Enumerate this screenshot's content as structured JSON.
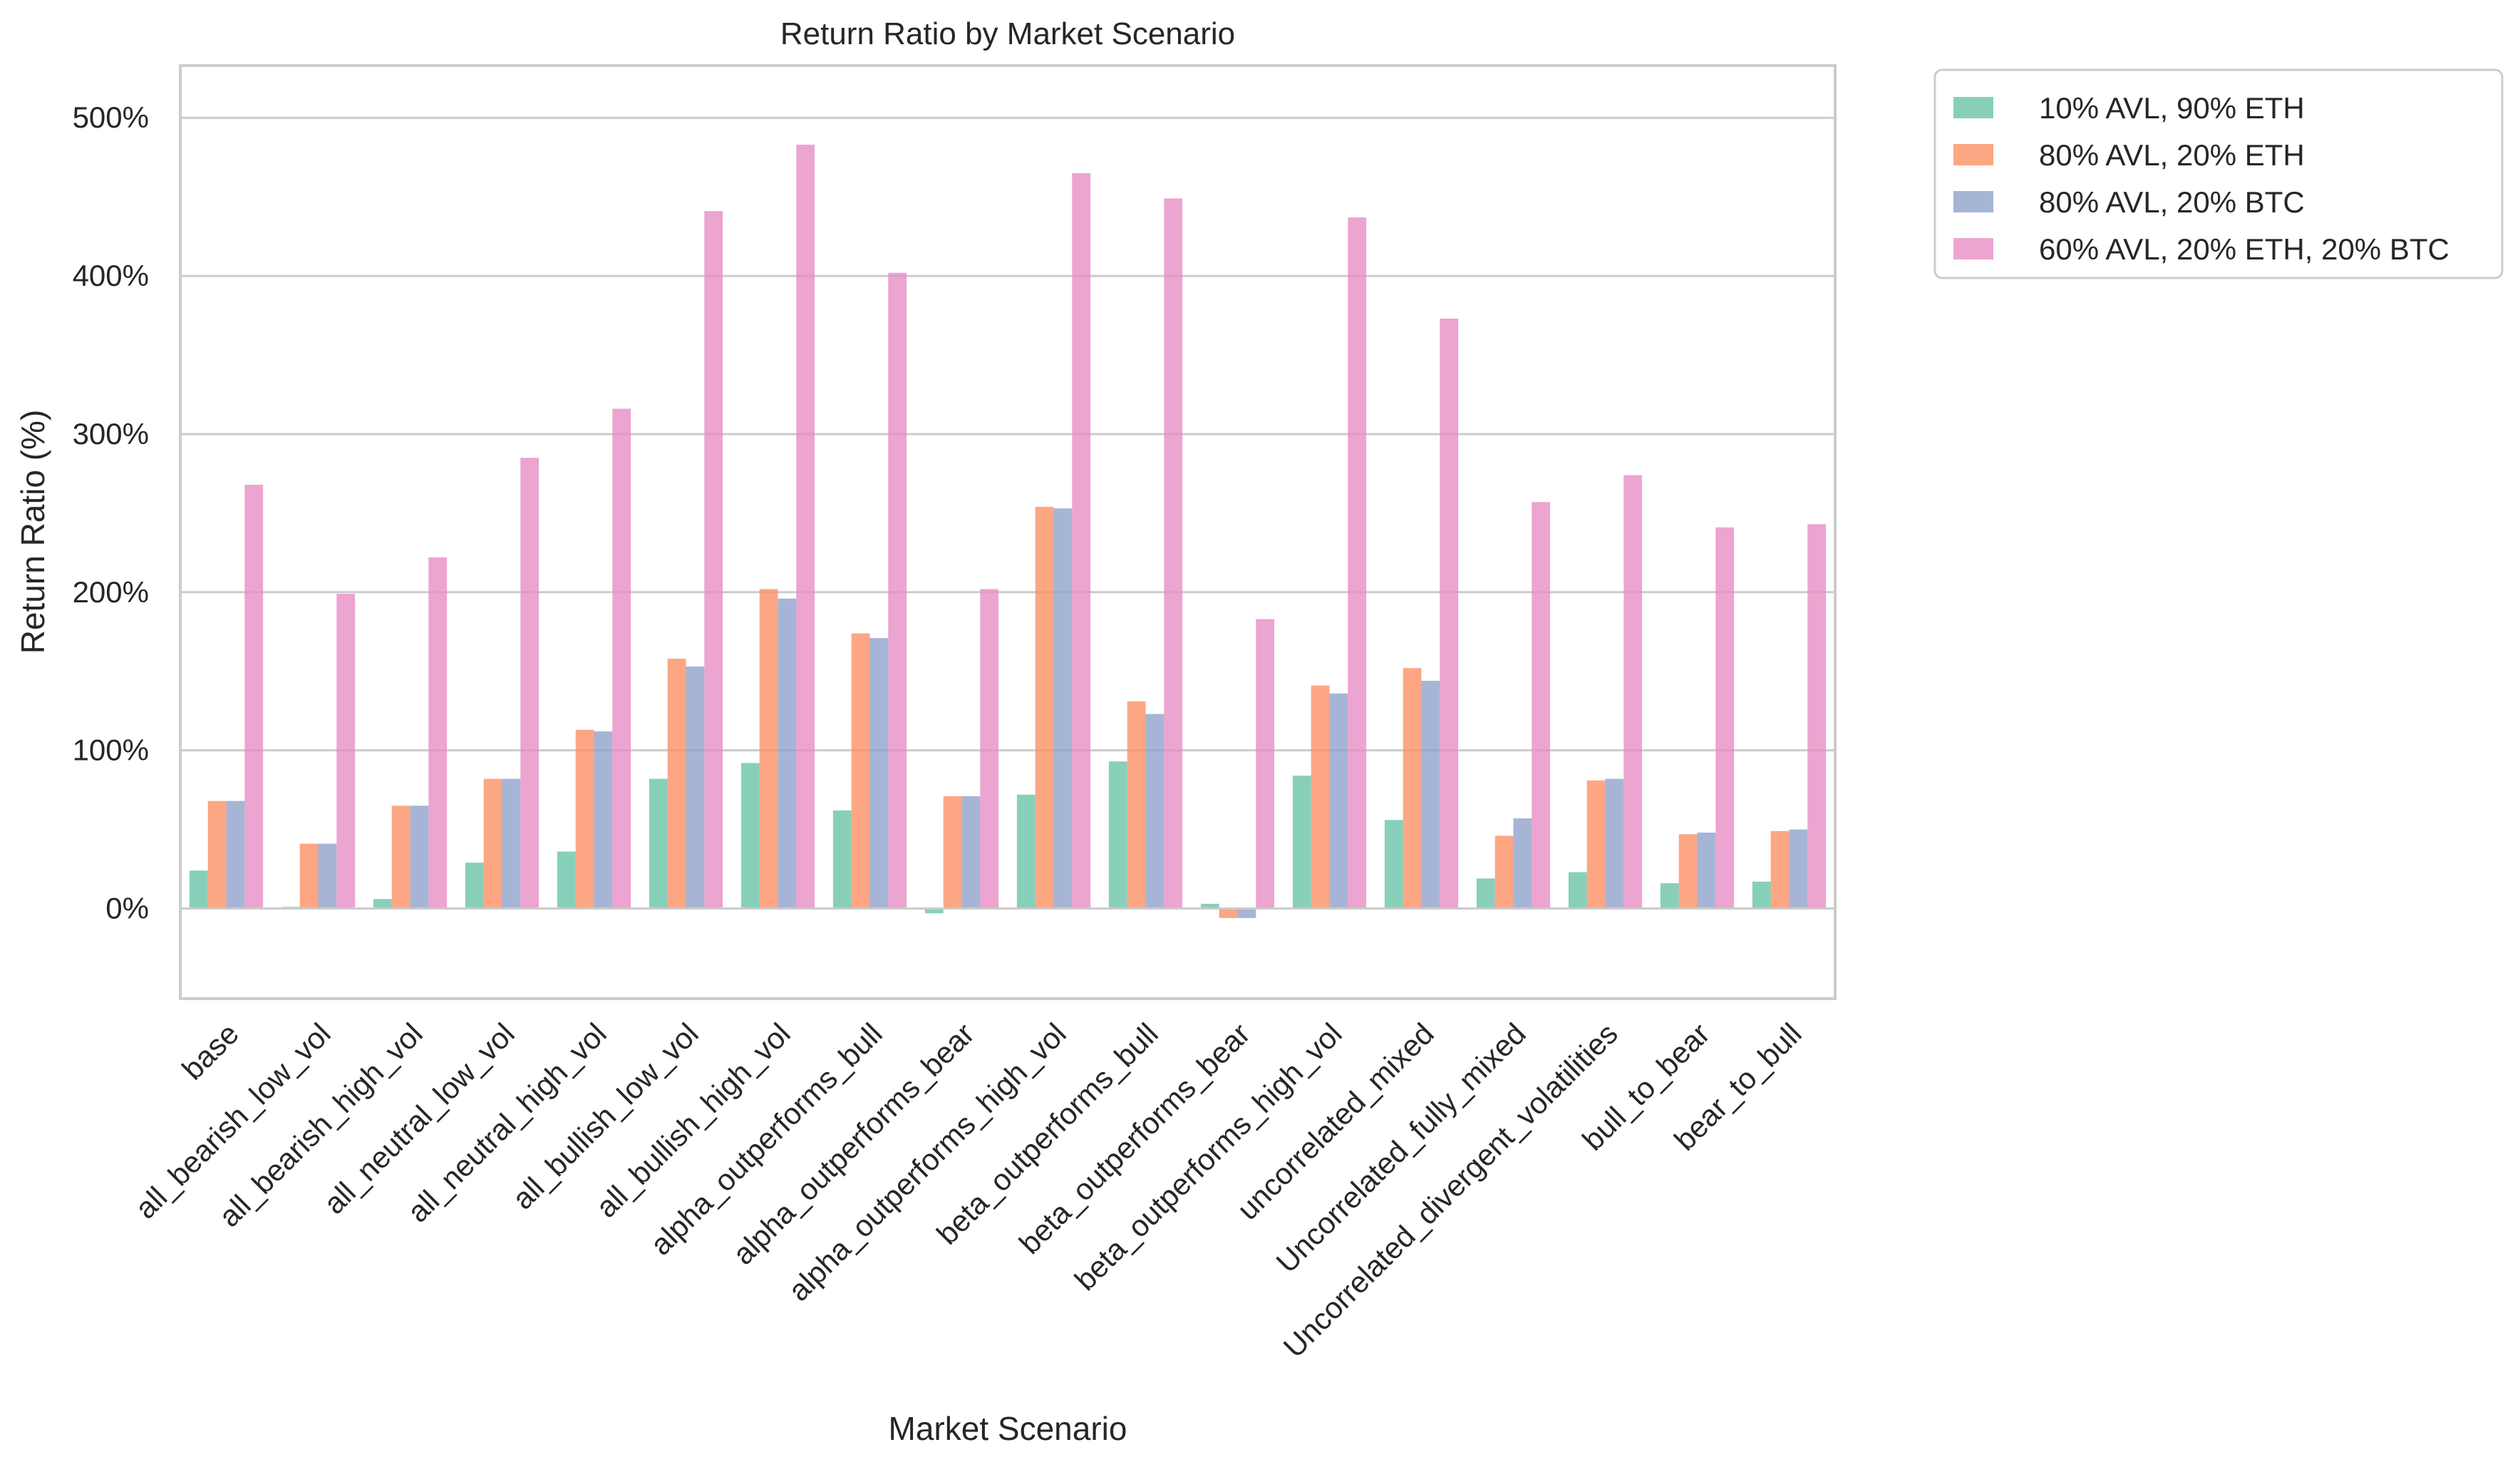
{
  "chart_data": {
    "type": "bar",
    "title": "Return Ratio by Market Scenario",
    "xlabel": "Market Scenario",
    "ylabel": "Return Ratio (%)",
    "ylim": [
      -57,
      533
    ],
    "yticks": [
      0,
      100,
      200,
      300,
      400,
      500
    ],
    "ytick_labels": [
      "0%",
      "100%",
      "200%",
      "300%",
      "400%",
      "500%"
    ],
    "grid": true,
    "legend_position": "outside top-right",
    "categories": [
      "base",
      "all_bearish_low_vol",
      "all_bearish_high_vol",
      "all_neutral_low_vol",
      "all_neutral_high_vol",
      "all_bullish_low_vol",
      "all_bullish_high_vol",
      "alpha_outperforms_bull",
      "alpha_outperforms_bear",
      "alpha_outperforms_high_vol",
      "beta_outperforms_bull",
      "beta_outperforms_bear",
      "beta_outperforms_high_vol",
      "uncorrelated_mixed",
      "Uncorrelated_fully_mixed",
      "Uncorrelated_divergent_volatilities",
      "bull_to_bear",
      "bear_to_bull"
    ],
    "series": [
      {
        "name": "10% AVL, 90% ETH",
        "color": "#66c2a5",
        "values": [
          24,
          1,
          6,
          29,
          36,
          82,
          92,
          62,
          -3,
          72,
          93,
          3,
          84,
          56,
          19,
          23,
          16,
          17
        ]
      },
      {
        "name": "80% AVL, 20% ETH",
        "color": "#fc8d62",
        "values": [
          68,
          41,
          65,
          82,
          113,
          158,
          202,
          174,
          71,
          254,
          131,
          -6,
          141,
          152,
          46,
          81,
          47,
          49
        ]
      },
      {
        "name": "80% AVL, 20% BTC",
        "color": "#8da0cb",
        "values": [
          68,
          41,
          65,
          82,
          112,
          153,
          196,
          171,
          71,
          253,
          123,
          -6,
          136,
          144,
          57,
          82,
          48,
          50
        ]
      },
      {
        "name": "60% AVL, 20% ETH, 20% BTC",
        "color": "#e78ac3",
        "values": [
          268,
          199,
          222,
          285,
          316,
          441,
          483,
          402,
          202,
          465,
          449,
          183,
          437,
          373,
          257,
          274,
          241,
          243
        ]
      }
    ]
  }
}
